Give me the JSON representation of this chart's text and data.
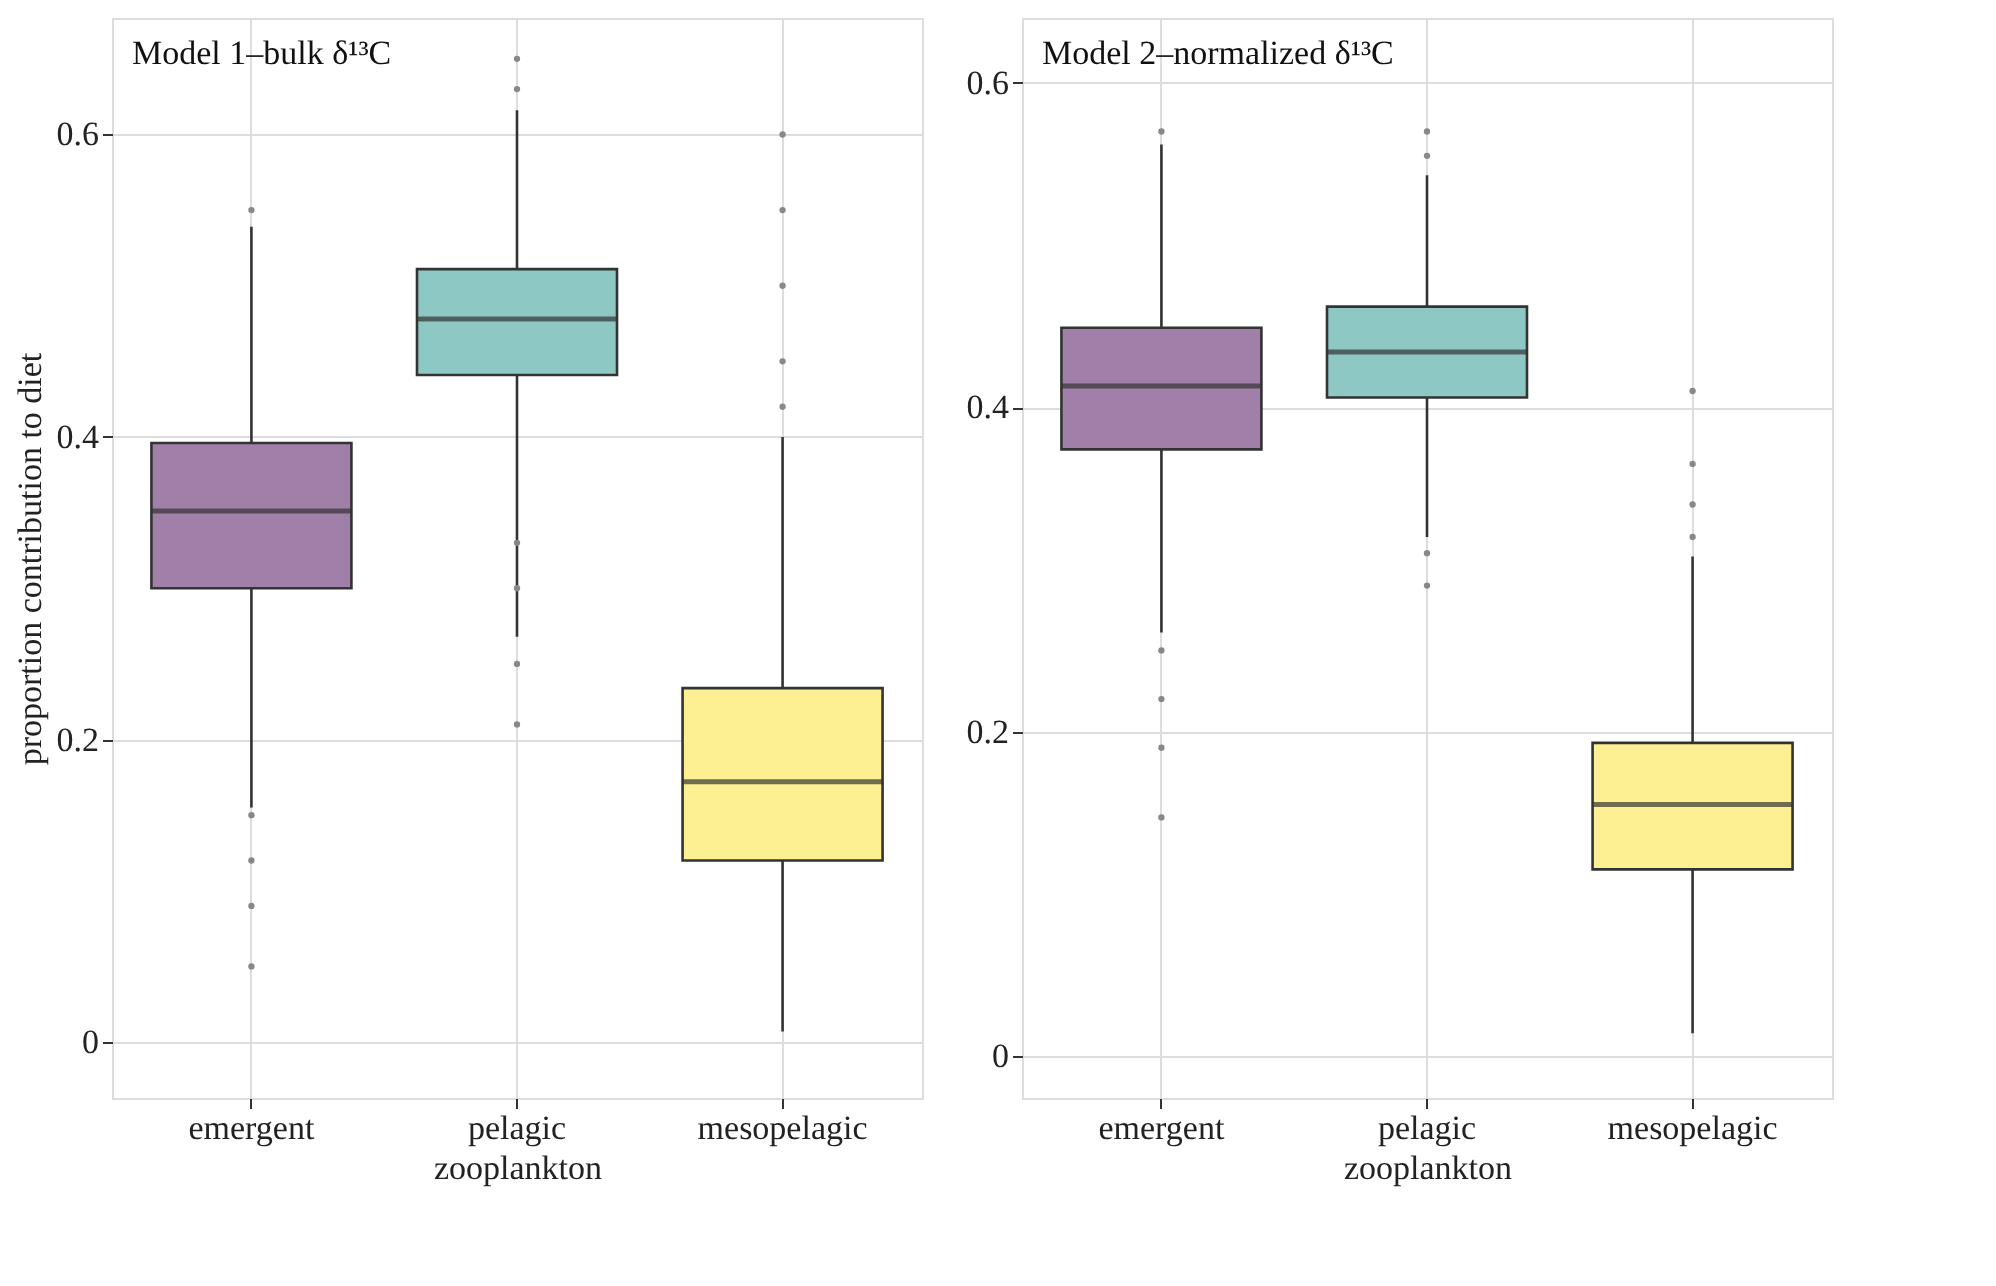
{
  "chart_data": [
    {
      "type": "box",
      "title": "Model 1–bulk δ¹³C",
      "xlabel": "zooplankton",
      "ylabel": "proportion contribution to diet",
      "categories": [
        "emergent",
        "pelagic",
        "mesopelagic"
      ],
      "colors": [
        "#a07fa8",
        "#8ec8c4",
        "#fdf092"
      ],
      "ylim": [
        -0.037,
        0.677
      ],
      "yticks": [
        0,
        0.2,
        0.4,
        0.6
      ],
      "grid": true,
      "boxes": [
        {
          "low": 0.155,
          "q1": 0.3,
          "median": 0.351,
          "q3": 0.396,
          "high": 0.539,
          "outliers": [
            0.55,
            0.15,
            0.12,
            0.09,
            0.05
          ]
        },
        {
          "low": 0.268,
          "q1": 0.441,
          "median": 0.478,
          "q3": 0.511,
          "high": 0.616,
          "outliers": [
            0.65,
            0.63,
            0.33,
            0.3,
            0.25,
            0.21
          ]
        },
        {
          "low": 0.007,
          "q1": 0.12,
          "median": 0.172,
          "q3": 0.234,
          "high": 0.4,
          "outliers": [
            0.6,
            0.55,
            0.5,
            0.45,
            0.42
          ]
        }
      ]
    },
    {
      "type": "box",
      "title": "Model 2–normalized δ¹³C",
      "xlabel": "zooplankton",
      "categories": [
        "emergent",
        "pelagic",
        "mesopelagic"
      ],
      "colors": [
        "#a07fa8",
        "#8ec8c4",
        "#fdf092"
      ],
      "ylim": [
        -0.026,
        0.64
      ],
      "yticks": [
        0,
        0.2,
        0.4,
        0.6
      ],
      "grid": true,
      "boxes": [
        {
          "low": 0.261,
          "q1": 0.374,
          "median": 0.413,
          "q3": 0.449,
          "high": 0.562,
          "outliers": [
            0.57,
            0.25,
            0.22,
            0.19,
            0.147
          ]
        },
        {
          "low": 0.32,
          "q1": 0.406,
          "median": 0.434,
          "q3": 0.462,
          "high": 0.543,
          "outliers": [
            0.57,
            0.555,
            0.31,
            0.29
          ]
        },
        {
          "low": 0.014,
          "q1": 0.115,
          "median": 0.155,
          "q3": 0.193,
          "high": 0.308,
          "outliers": [
            0.41,
            0.365,
            0.34,
            0.32
          ]
        }
      ]
    }
  ]
}
